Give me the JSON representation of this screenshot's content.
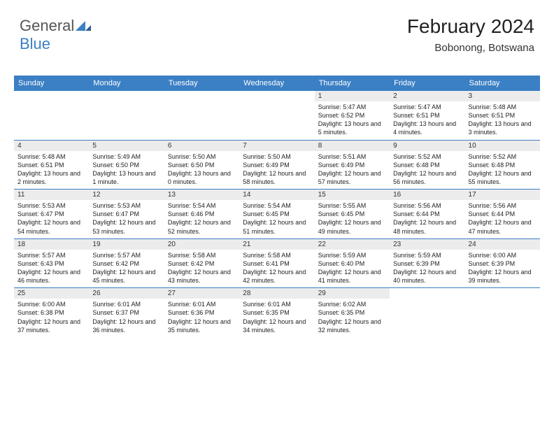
{
  "brand": {
    "part1": "General",
    "part2": "Blue"
  },
  "header": {
    "title": "February 2024",
    "location": "Bobonong, Botswana"
  },
  "colors": {
    "accent": "#3b7fc4",
    "day_banner": "#ececec",
    "bg": "#ffffff"
  },
  "day_names": [
    "Sunday",
    "Monday",
    "Tuesday",
    "Wednesday",
    "Thursday",
    "Friday",
    "Saturday"
  ],
  "weeks": [
    [
      null,
      null,
      null,
      null,
      {
        "n": "1",
        "sr": "5:47 AM",
        "ss": "6:52 PM",
        "dl": "13 hours and 5 minutes."
      },
      {
        "n": "2",
        "sr": "5:47 AM",
        "ss": "6:51 PM",
        "dl": "13 hours and 4 minutes."
      },
      {
        "n": "3",
        "sr": "5:48 AM",
        "ss": "6:51 PM",
        "dl": "13 hours and 3 minutes."
      }
    ],
    [
      {
        "n": "4",
        "sr": "5:48 AM",
        "ss": "6:51 PM",
        "dl": "13 hours and 2 minutes."
      },
      {
        "n": "5",
        "sr": "5:49 AM",
        "ss": "6:50 PM",
        "dl": "13 hours and 1 minute."
      },
      {
        "n": "6",
        "sr": "5:50 AM",
        "ss": "6:50 PM",
        "dl": "13 hours and 0 minutes."
      },
      {
        "n": "7",
        "sr": "5:50 AM",
        "ss": "6:49 PM",
        "dl": "12 hours and 58 minutes."
      },
      {
        "n": "8",
        "sr": "5:51 AM",
        "ss": "6:49 PM",
        "dl": "12 hours and 57 minutes."
      },
      {
        "n": "9",
        "sr": "5:52 AM",
        "ss": "6:48 PM",
        "dl": "12 hours and 56 minutes."
      },
      {
        "n": "10",
        "sr": "5:52 AM",
        "ss": "6:48 PM",
        "dl": "12 hours and 55 minutes."
      }
    ],
    [
      {
        "n": "11",
        "sr": "5:53 AM",
        "ss": "6:47 PM",
        "dl": "12 hours and 54 minutes."
      },
      {
        "n": "12",
        "sr": "5:53 AM",
        "ss": "6:47 PM",
        "dl": "12 hours and 53 minutes."
      },
      {
        "n": "13",
        "sr": "5:54 AM",
        "ss": "6:46 PM",
        "dl": "12 hours and 52 minutes."
      },
      {
        "n": "14",
        "sr": "5:54 AM",
        "ss": "6:45 PM",
        "dl": "12 hours and 51 minutes."
      },
      {
        "n": "15",
        "sr": "5:55 AM",
        "ss": "6:45 PM",
        "dl": "12 hours and 49 minutes."
      },
      {
        "n": "16",
        "sr": "5:56 AM",
        "ss": "6:44 PM",
        "dl": "12 hours and 48 minutes."
      },
      {
        "n": "17",
        "sr": "5:56 AM",
        "ss": "6:44 PM",
        "dl": "12 hours and 47 minutes."
      }
    ],
    [
      {
        "n": "18",
        "sr": "5:57 AM",
        "ss": "6:43 PM",
        "dl": "12 hours and 46 minutes."
      },
      {
        "n": "19",
        "sr": "5:57 AM",
        "ss": "6:42 PM",
        "dl": "12 hours and 45 minutes."
      },
      {
        "n": "20",
        "sr": "5:58 AM",
        "ss": "6:42 PM",
        "dl": "12 hours and 43 minutes."
      },
      {
        "n": "21",
        "sr": "5:58 AM",
        "ss": "6:41 PM",
        "dl": "12 hours and 42 minutes."
      },
      {
        "n": "22",
        "sr": "5:59 AM",
        "ss": "6:40 PM",
        "dl": "12 hours and 41 minutes."
      },
      {
        "n": "23",
        "sr": "5:59 AM",
        "ss": "6:39 PM",
        "dl": "12 hours and 40 minutes."
      },
      {
        "n": "24",
        "sr": "6:00 AM",
        "ss": "6:39 PM",
        "dl": "12 hours and 39 minutes."
      }
    ],
    [
      {
        "n": "25",
        "sr": "6:00 AM",
        "ss": "6:38 PM",
        "dl": "12 hours and 37 minutes."
      },
      {
        "n": "26",
        "sr": "6:01 AM",
        "ss": "6:37 PM",
        "dl": "12 hours and 36 minutes."
      },
      {
        "n": "27",
        "sr": "6:01 AM",
        "ss": "6:36 PM",
        "dl": "12 hours and 35 minutes."
      },
      {
        "n": "28",
        "sr": "6:01 AM",
        "ss": "6:35 PM",
        "dl": "12 hours and 34 minutes."
      },
      {
        "n": "29",
        "sr": "6:02 AM",
        "ss": "6:35 PM",
        "dl": "12 hours and 32 minutes."
      },
      null,
      null
    ]
  ],
  "labels": {
    "sunrise": "Sunrise:",
    "sunset": "Sunset:",
    "daylight": "Daylight:"
  }
}
